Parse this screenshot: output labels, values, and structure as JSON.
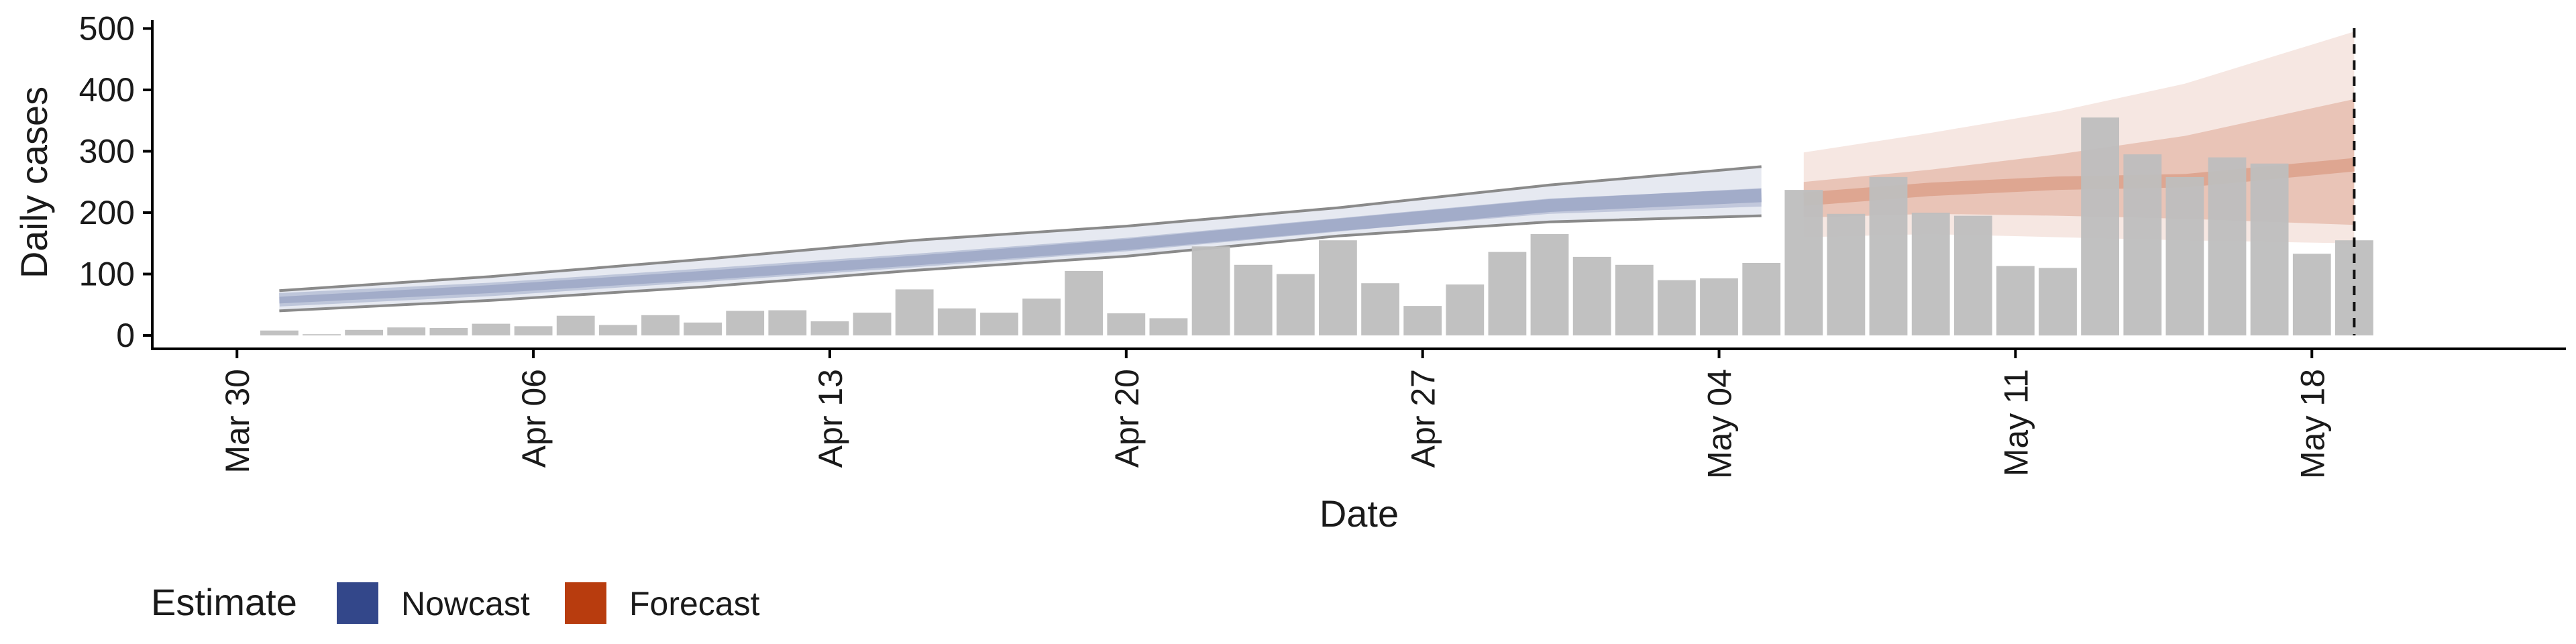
{
  "chart_data": {
    "type": "bar",
    "xlabel": "Date",
    "ylabel": "Daily cases",
    "ylim": [
      0,
      520
    ],
    "yticks": [
      0,
      100,
      200,
      300,
      400,
      500
    ],
    "x_tick_labels": [
      "Mar 30",
      "Apr 06",
      "Apr 13",
      "Apr 20",
      "Apr 27",
      "May 04",
      "May 11",
      "May 18"
    ],
    "x_tick_dates": [
      "2020-03-30",
      "2020-04-06",
      "2020-04-13",
      "2020-04-20",
      "2020-04-27",
      "2020-05-04",
      "2020-05-11",
      "2020-05-18"
    ],
    "x_range": [
      "2020-03-28",
      "2020-05-24"
    ],
    "vline_date": "2020-05-19",
    "bars": {
      "dates": [
        "2020-03-31",
        "2020-04-01",
        "2020-04-02",
        "2020-04-03",
        "2020-04-04",
        "2020-04-05",
        "2020-04-06",
        "2020-04-07",
        "2020-04-08",
        "2020-04-09",
        "2020-04-10",
        "2020-04-11",
        "2020-04-12",
        "2020-04-13",
        "2020-04-14",
        "2020-04-15",
        "2020-04-16",
        "2020-04-17",
        "2020-04-18",
        "2020-04-19",
        "2020-04-20",
        "2020-04-21",
        "2020-04-22",
        "2020-04-23",
        "2020-04-24",
        "2020-04-25",
        "2020-04-26",
        "2020-04-27",
        "2020-04-28",
        "2020-04-29",
        "2020-04-30",
        "2020-05-01",
        "2020-05-02",
        "2020-05-03",
        "2020-05-04",
        "2020-05-05",
        "2020-05-06",
        "2020-05-07",
        "2020-05-08",
        "2020-05-09",
        "2020-05-10",
        "2020-05-11",
        "2020-05-12",
        "2020-05-13",
        "2020-05-14",
        "2020-05-15",
        "2020-05-16",
        "2020-05-17",
        "2020-05-18",
        "2020-05-19"
      ],
      "values": [
        8,
        2,
        9,
        13,
        12,
        19,
        15,
        32,
        17,
        33,
        21,
        40,
        41,
        23,
        37,
        75,
        44,
        37,
        60,
        105,
        36,
        28,
        145,
        115,
        100,
        155,
        85,
        48,
        83,
        136,
        165,
        128,
        115,
        90,
        93,
        118,
        237,
        198,
        258,
        200,
        195,
        113,
        110,
        355,
        295,
        258,
        290,
        280,
        133,
        155
      ],
      "color": "#bebebe"
    },
    "series": [
      {
        "name": "Nowcast",
        "color": "#33478a",
        "dates": [
          "2020-03-31",
          "2020-04-05",
          "2020-04-10",
          "2020-04-15",
          "2020-04-20",
          "2020-04-25",
          "2020-04-30",
          "2020-05-05"
        ],
        "median": [
          58,
          75,
          98,
          122,
          148,
          180,
          212,
          228
        ],
        "inner_lower": [
          52,
          69,
          90,
          114,
          139,
          170,
          198,
          210
        ],
        "inner_upper": [
          63,
          82,
          105,
          130,
          157,
          190,
          222,
          240
        ],
        "outer_lower": [
          40,
          57,
          79,
          106,
          129,
          162,
          185,
          195
        ],
        "outer_upper": [
          73,
          96,
          124,
          155,
          178,
          208,
          245,
          275
        ]
      },
      {
        "name": "Forecast",
        "color": "#b83c0e",
        "dates": [
          "2020-05-06",
          "2020-05-09",
          "2020-05-12",
          "2020-05-15",
          "2020-05-19"
        ],
        "median": [
          222,
          238,
          248,
          252,
          278
        ],
        "inner_lower": [
          192,
          198,
          195,
          190,
          180
        ],
        "inner_upper": [
          250,
          270,
          295,
          325,
          385
        ],
        "outer_lower": [
          160,
          165,
          160,
          155,
          150
        ],
        "outer_upper": [
          298,
          330,
          365,
          410,
          495
        ]
      }
    ],
    "legend": {
      "title": "Estimate",
      "position": "bottom-left",
      "entries": [
        {
          "label": "Nowcast",
          "color": "#33478a"
        },
        {
          "label": "Forecast",
          "color": "#b83c0e"
        }
      ]
    },
    "grid": false
  }
}
